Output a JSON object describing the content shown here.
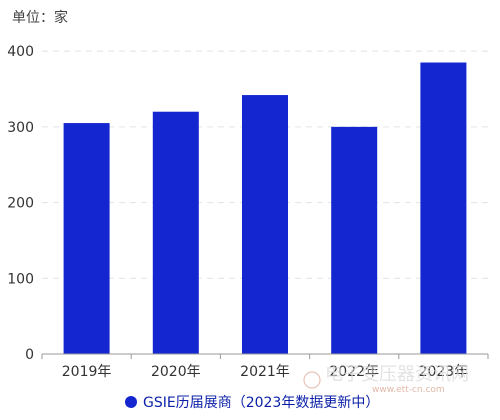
{
  "chart_data": {
    "type": "bar",
    "unit_label": "单位：家",
    "categories": [
      "2019年",
      "2020年",
      "2021年",
      "2022年",
      "2023年"
    ],
    "series": [
      {
        "name": "GSIE历届展商（2023年数据更新中）",
        "values": [
          305,
          320,
          342,
          300,
          385
        ],
        "color": "#1426cf"
      }
    ],
    "y_ticks": [
      0,
      100,
      200,
      300,
      400
    ],
    "ylim": [
      0,
      420
    ],
    "grid": true,
    "legend_position": "bottom-center"
  },
  "watermark": {
    "text": "电子变压器资讯网",
    "url": "www.ett-cn.com"
  }
}
